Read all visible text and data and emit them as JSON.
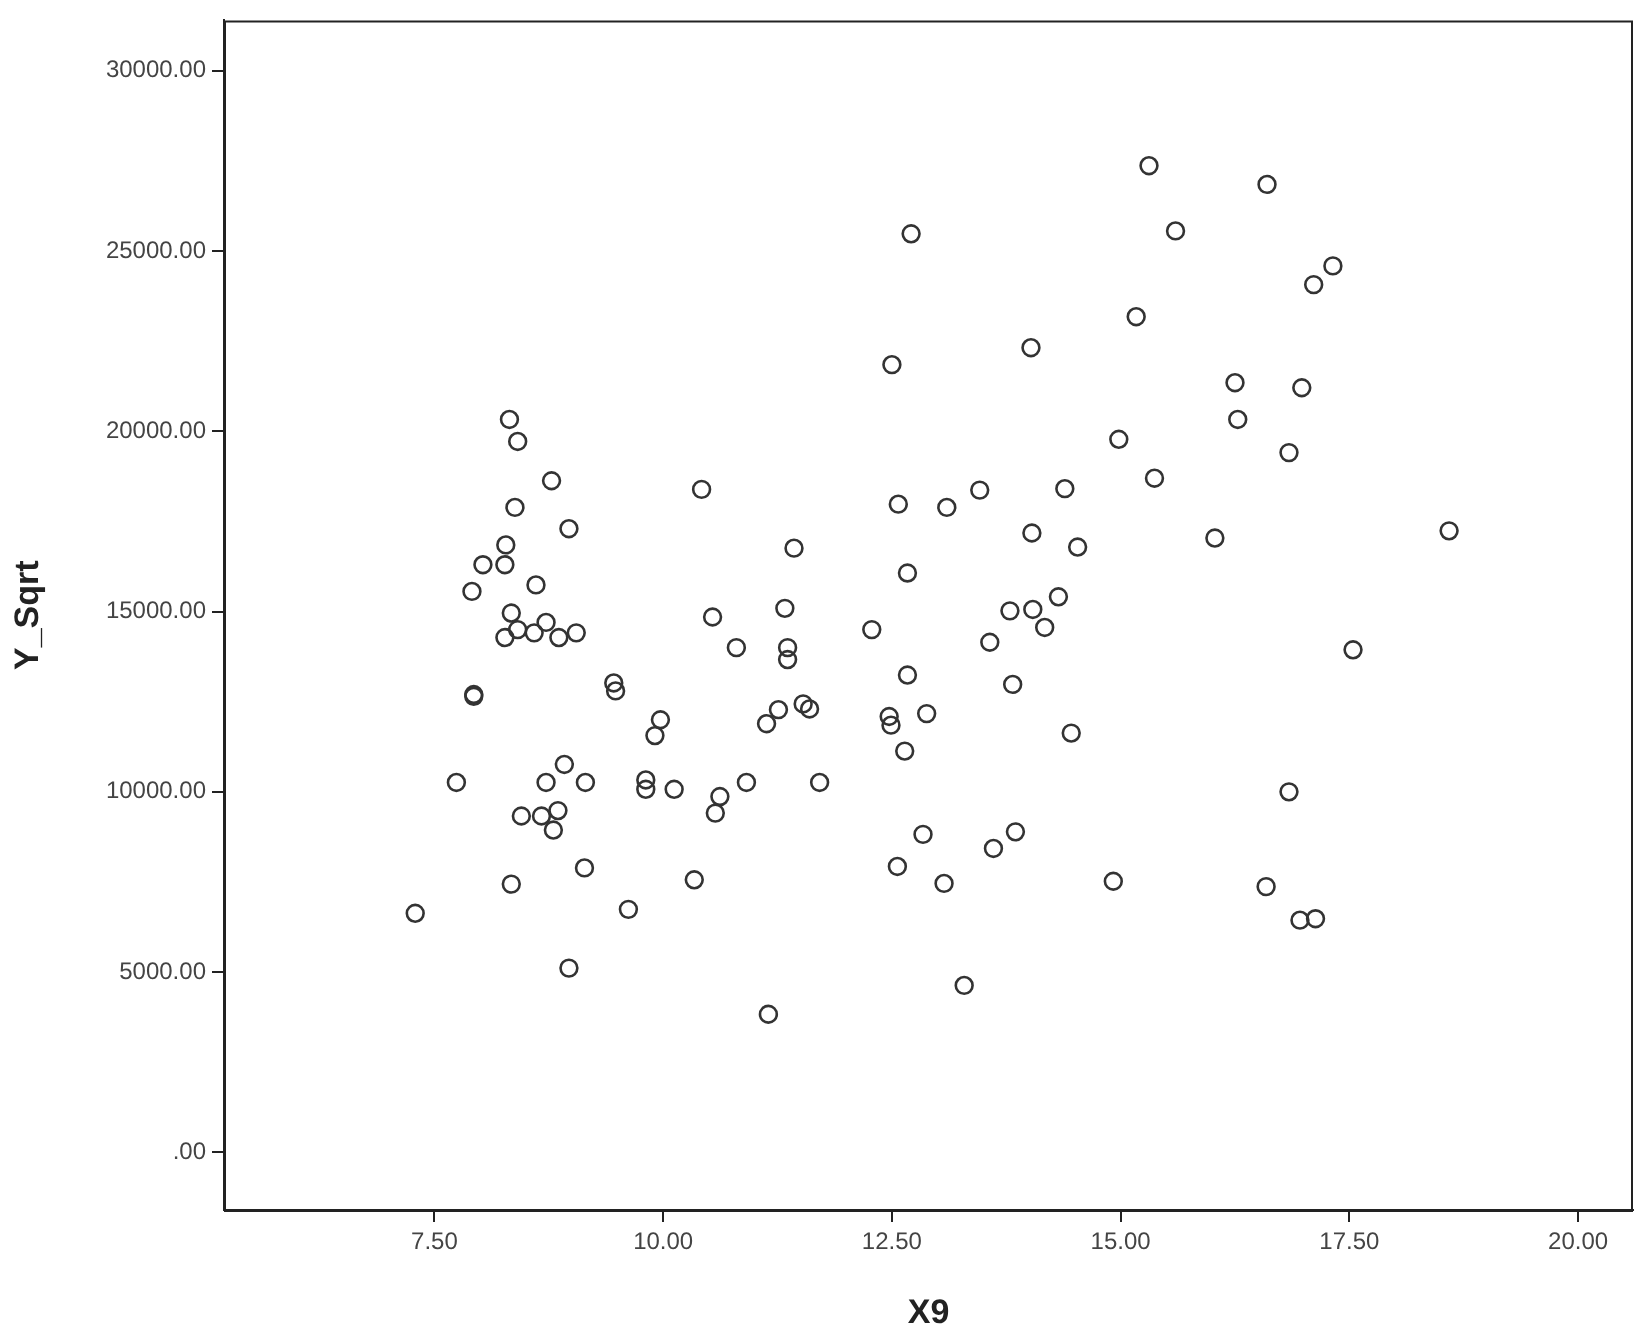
{
  "chart_data": {
    "type": "scatter",
    "xlabel": "X9",
    "ylabel": "Y_Sqrt",
    "marker": "circle",
    "legend": false,
    "xlim": [
      5.2,
      20.6
    ],
    "ylim": [
      -1600,
      31400
    ],
    "xticks": [
      {
        "value": 7.5,
        "label": "7.50"
      },
      {
        "value": 10,
        "label": "10.00"
      },
      {
        "value": 12.5,
        "label": "12.50"
      },
      {
        "value": 15,
        "label": "15.00"
      },
      {
        "value": 17.5,
        "label": "17.50"
      },
      {
        "value": 20,
        "label": "20.00"
      }
    ],
    "yticks": [
      {
        "value": 0,
        "label": ".00"
      },
      {
        "value": 5000,
        "label": "5000.00"
      },
      {
        "value": 10000,
        "label": "10000.00"
      },
      {
        "value": 15000,
        "label": "15000.00"
      },
      {
        "value": 20000,
        "label": "20000.00"
      },
      {
        "value": 25000,
        "label": "25000.00"
      },
      {
        "value": 30000,
        "label": "30000.00"
      }
    ],
    "series": [
      {
        "color": "#333333",
        "x": [
          8.32,
          8.41,
          8.78,
          10.42,
          8.38,
          8.97,
          8.28,
          8.03,
          8.27,
          11.43,
          7.91,
          8.61,
          8.34,
          8.27,
          8.41,
          8.59,
          8.72,
          8.86,
          9.05,
          10.54,
          11.33,
          10.8,
          11.36,
          11.36,
          7.93,
          7.93,
          9.46,
          9.48,
          9.97,
          9.91,
          11.26,
          11.13,
          11.53,
          11.6,
          7.74,
          8.92,
          8.72,
          9.15,
          9.81,
          9.81,
          10.12,
          10.62,
          10.57,
          10.91,
          11.71,
          8.45,
          8.67,
          8.85,
          8.8,
          9.14,
          8.34,
          10.34,
          7.29,
          9.62,
          8.97,
          11.15,
          15.31,
          12.71,
          15.6,
          15.17,
          14.02,
          12.5,
          14.98,
          15.37,
          12.57,
          13.1,
          13.46,
          14.39,
          14.03,
          14.53,
          12.67,
          13.79,
          14.04,
          14.32,
          14.17,
          12.28,
          13.57,
          13.82,
          12.67,
          12.47,
          12.49,
          12.88,
          12.64,
          14.46,
          12.84,
          13.85,
          13.61,
          12.56,
          13.07,
          14.92,
          13.29,
          16.6,
          17.32,
          17.11,
          16.25,
          16.98,
          16.28,
          16.84,
          16.03,
          18.59,
          17.54,
          16.84,
          16.59,
          16.96,
          17.13
        ],
        "values": [
          20330,
          19720,
          18630,
          18390,
          17890,
          17300,
          16850,
          16300,
          16300,
          16760,
          15560,
          15740,
          14960,
          14280,
          14500,
          14410,
          14700,
          14280,
          14410,
          14850,
          15090,
          14000,
          14000,
          13670,
          12700,
          12650,
          13020,
          12800,
          12000,
          11560,
          12280,
          11890,
          12440,
          12300,
          10260,
          10760,
          10260,
          10260,
          10330,
          10070,
          10070,
          9870,
          9410,
          10260,
          10260,
          9330,
          9330,
          9480,
          8940,
          7890,
          7440,
          7560,
          6630,
          6740,
          5110,
          3830,
          27370,
          25480,
          25560,
          23180,
          22320,
          21850,
          19780,
          18700,
          17980,
          17890,
          18370,
          18410,
          17180,
          16790,
          16070,
          15020,
          15060,
          15410,
          14560,
          14500,
          14150,
          12980,
          13240,
          12090,
          11850,
          12170,
          11130,
          11630,
          8820,
          8890,
          8430,
          7930,
          7460,
          7520,
          4630,
          26850,
          24590,
          24070,
          21350,
          21210,
          20330,
          19410,
          17040,
          17240,
          13940,
          10000,
          7370,
          6440,
          6480
        ]
      }
    ]
  }
}
